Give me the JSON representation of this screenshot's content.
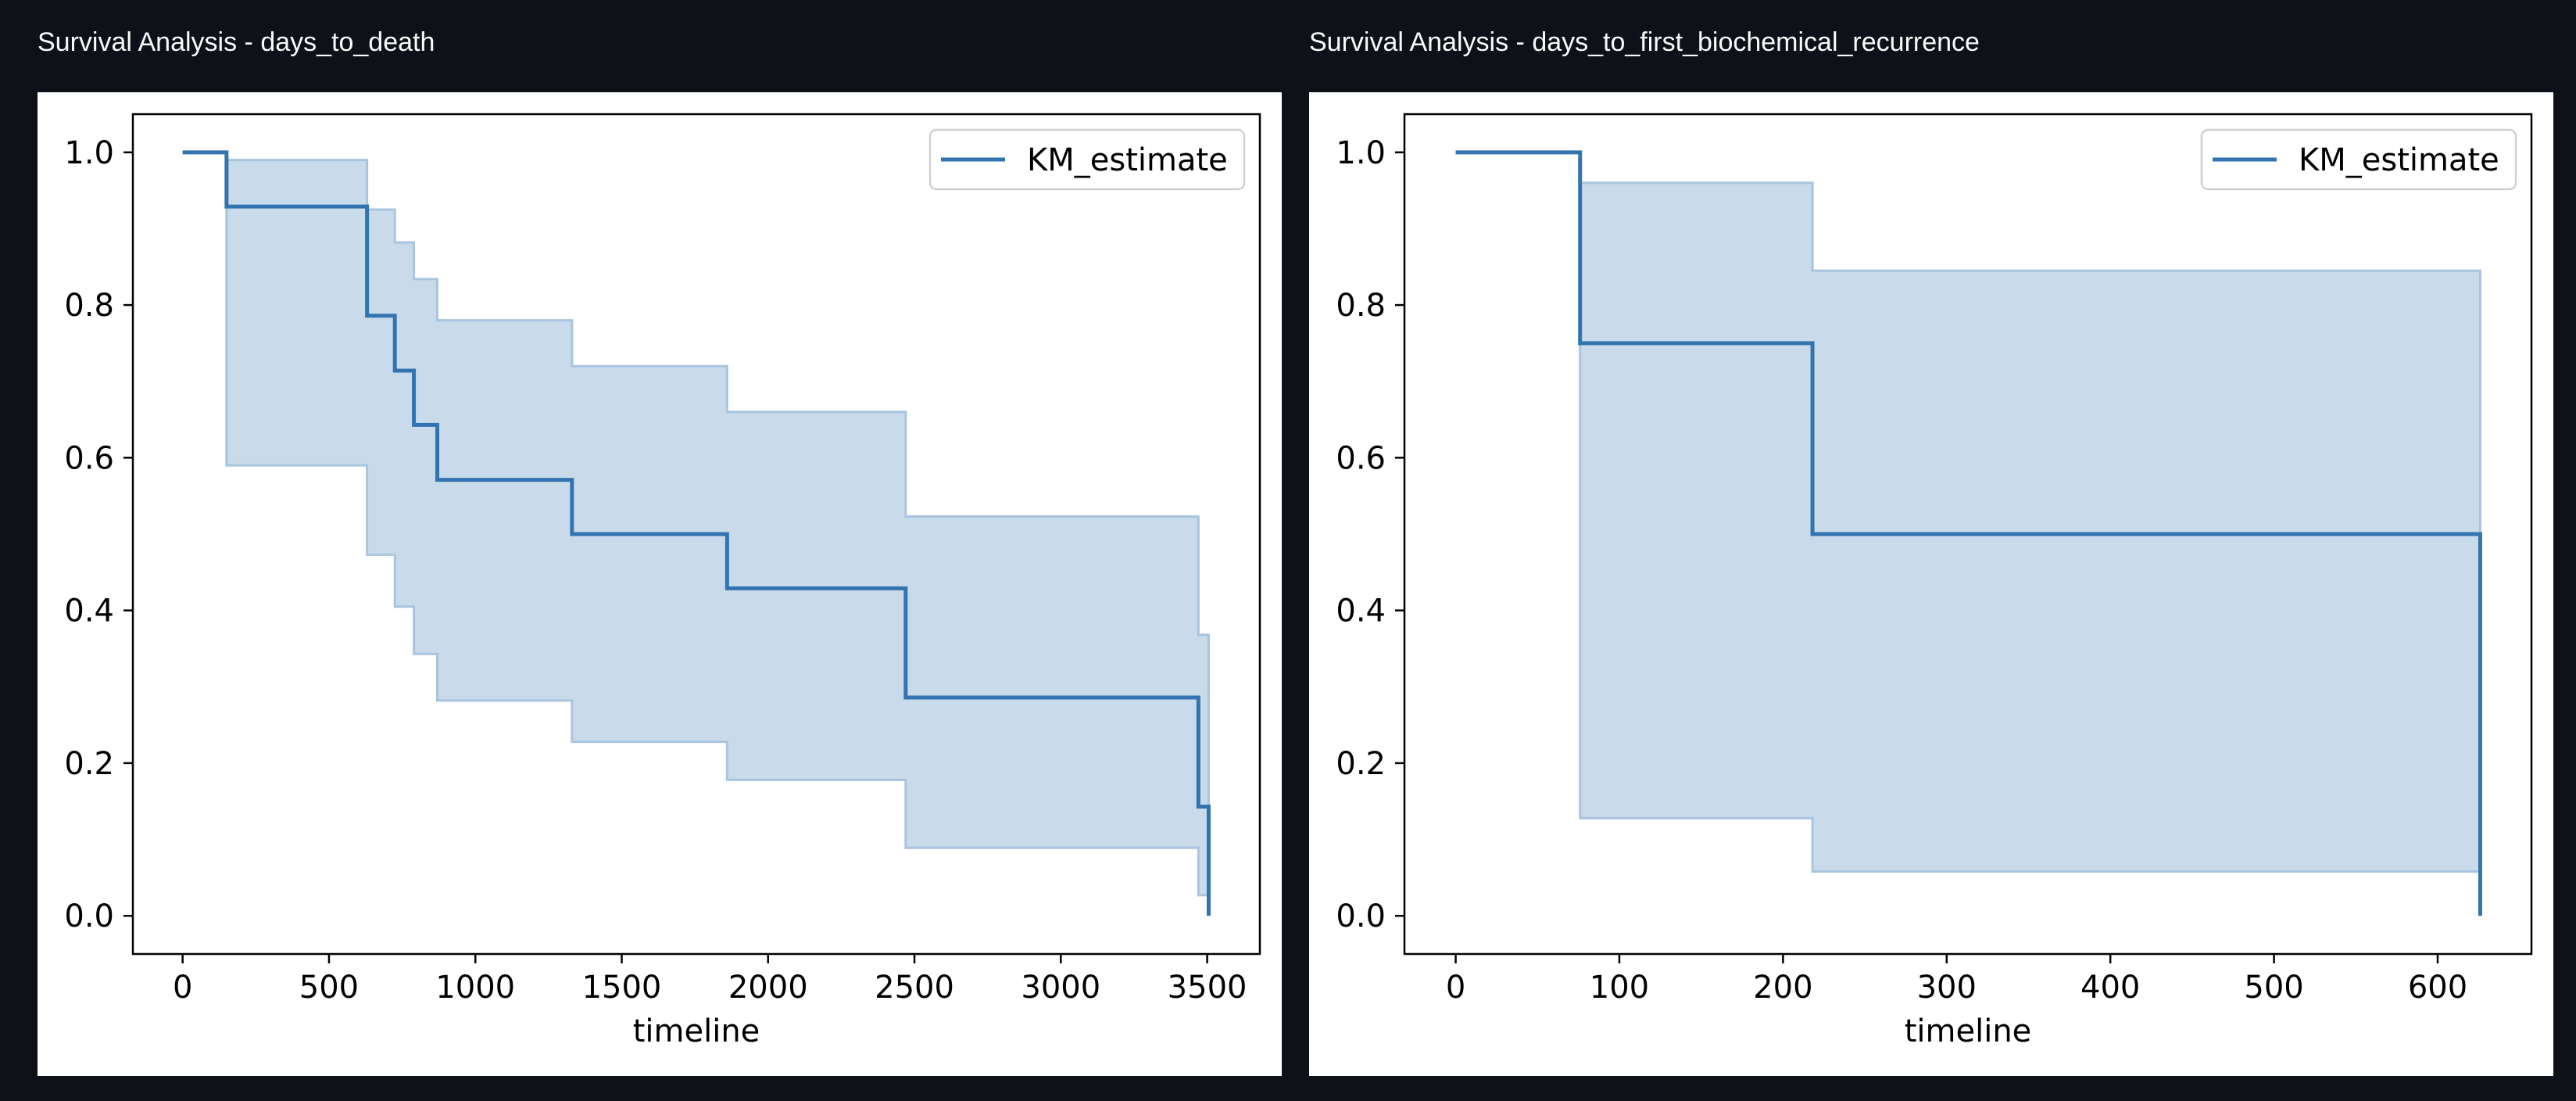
{
  "panels": [
    {
      "title": "Survival Analysis - days_to_death",
      "chart_data": {
        "type": "line",
        "subtype": "kaplan-meier step plot with shaded confidence band",
        "title": "",
        "xlabel": "timeline",
        "ylabel": "",
        "xlim": [
          -170,
          3680
        ],
        "ylim": [
          -0.05,
          1.05
        ],
        "xticks": [
          0,
          500,
          1000,
          1500,
          2000,
          2500,
          3000,
          3500
        ],
        "yticks": [
          0.0,
          0.2,
          0.4,
          0.6,
          0.8,
          1.0
        ],
        "ytick_labels": [
          "0.0",
          "0.2",
          "0.4",
          "0.6",
          "0.8",
          "1.0"
        ],
        "grid": false,
        "legend": {
          "position": "top-right",
          "entries": [
            "KM_estimate"
          ]
        },
        "colors": {
          "line": "#3274b0",
          "band": "#c9dbea",
          "band_edge": "#a8c4de"
        },
        "series": [
          {
            "name": "KM_estimate",
            "x": [
              0,
              150,
              630,
              725,
              790,
              870,
              1330,
              1860,
              2470,
              3470,
              3505
            ],
            "y": [
              1.0,
              0.929,
              0.786,
              0.714,
              0.643,
              0.571,
              0.5,
              0.429,
              0.286,
              0.143,
              0.0
            ],
            "ci_lower": [
              1.0,
              0.59,
              0.473,
              0.405,
              0.343,
              0.282,
              0.228,
              0.178,
              0.089,
              0.027
            ],
            "ci_upper": [
              1.0,
              0.99,
              0.925,
              0.882,
              0.834,
              0.78,
              0.72,
              0.66,
              0.523,
              0.368
            ]
          }
        ]
      }
    },
    {
      "title": "Survival Analysis - days_to_first_biochemical_recurrence",
      "chart_data": {
        "type": "line",
        "subtype": "kaplan-meier step plot with shaded confidence band",
        "title": "",
        "xlabel": "timeline",
        "ylabel": "",
        "xlim": [
          -31.3,
          657.3
        ],
        "ylim": [
          -0.05,
          1.05
        ],
        "xticks": [
          0,
          100,
          200,
          300,
          400,
          500,
          600
        ],
        "yticks": [
          0.0,
          0.2,
          0.4,
          0.6,
          0.8,
          1.0
        ],
        "ytick_labels": [
          "0.0",
          "0.2",
          "0.4",
          "0.6",
          "0.8",
          "1.0"
        ],
        "grid": false,
        "legend": {
          "position": "top-right",
          "entries": [
            "KM_estimate"
          ]
        },
        "colors": {
          "line": "#3274b0",
          "band": "#c9dbea",
          "band_edge": "#a8c4de"
        },
        "series": [
          {
            "name": "KM_estimate",
            "x": [
              0,
              76,
              218,
              626
            ],
            "y": [
              1.0,
              0.75,
              0.5,
              0.0
            ],
            "ci_lower": [
              1.0,
              0.128,
              0.058
            ],
            "ci_upper": [
              1.0,
              0.96,
              0.845
            ]
          }
        ]
      }
    }
  ]
}
